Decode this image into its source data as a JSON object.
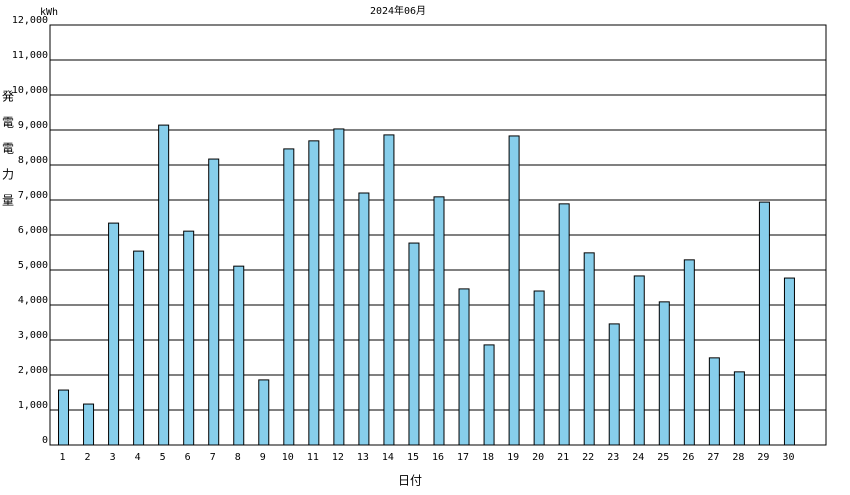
{
  "chart_data": {
    "type": "bar",
    "title": "2024年06月",
    "y_unit": "kWh",
    "y_label": "発電電力量",
    "x_label": "日付",
    "categories": [
      "1",
      "2",
      "3",
      "4",
      "5",
      "6",
      "7",
      "8",
      "9",
      "10",
      "11",
      "12",
      "13",
      "14",
      "15",
      "16",
      "17",
      "18",
      "19",
      "20",
      "21",
      "22",
      "23",
      "24",
      "25",
      "26",
      "27",
      "28",
      "29",
      "30"
    ],
    "values": [
      1570,
      1170,
      6340,
      5540,
      9140,
      6110,
      8170,
      5110,
      1860,
      8460,
      8690,
      9030,
      7200,
      8860,
      5770,
      7090,
      4460,
      2860,
      8830,
      4400,
      6890,
      5490,
      3460,
      4830,
      4090,
      5290,
      2490,
      2090,
      6940,
      4770
    ],
    "color": "#87ceeb",
    "ylim": [
      0,
      12000
    ],
    "yticks": [
      0,
      {
        "value": 1000,
        "label": "1,000"
      },
      {
        "value": 2000,
        "label": "2,000"
      },
      {
        "value": 3000,
        "label": "3,000"
      },
      {
        "value": 4000,
        "label": "4,000"
      },
      {
        "value": 5000,
        "label": "5,000"
      },
      {
        "value": 6000,
        "label": "6,000"
      },
      {
        "value": 7000,
        "label": "7,000"
      },
      {
        "value": 8000,
        "label": "8,000"
      },
      {
        "value": 9000,
        "label": "9,000"
      },
      {
        "value": 10000,
        "label": "10,000"
      },
      {
        "value": 11000,
        "label": "11,000"
      },
      {
        "value": 12000,
        "label": "12,000"
      }
    ],
    "grid": true
  }
}
